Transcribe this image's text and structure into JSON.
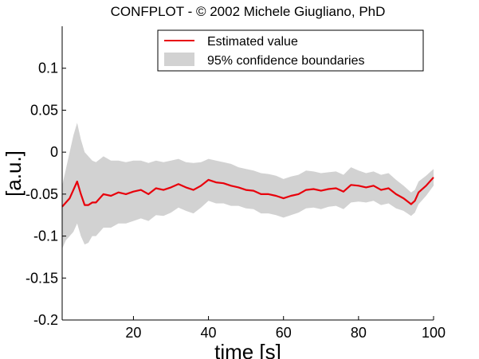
{
  "chart_data": {
    "type": "line",
    "title": "CONFPLOT - © 2002 Michele Giugliano, PhD",
    "xlabel": "time [s]",
    "ylabel": "[a.u.]",
    "xlim": [
      1,
      100
    ],
    "ylim": [
      -0.2,
      0.15
    ],
    "xticks": [
      "20",
      "40",
      "60",
      "80",
      "100"
    ],
    "yticks": [
      "0.1",
      "0.05",
      "0",
      "-0.05",
      "-0.1",
      "-0.15",
      "-0.2"
    ],
    "grid": false,
    "legend_position": "top-right",
    "series": [
      {
        "name": "Estimated value",
        "color": "#e8000b",
        "style": "line",
        "x": [
          1,
          2,
          3,
          4,
          5,
          6,
          7,
          8,
          9,
          10,
          12,
          14,
          16,
          18,
          20,
          22,
          24,
          26,
          28,
          30,
          32,
          34,
          36,
          38,
          40,
          42,
          44,
          46,
          48,
          50,
          52,
          54,
          56,
          58,
          60,
          62,
          64,
          66,
          68,
          70,
          72,
          74,
          76,
          78,
          80,
          82,
          84,
          86,
          88,
          90,
          92,
          94,
          95,
          96,
          98,
          100
        ],
        "y": [
          -0.065,
          -0.06,
          -0.055,
          -0.045,
          -0.035,
          -0.05,
          -0.063,
          -0.063,
          -0.06,
          -0.06,
          -0.05,
          -0.052,
          -0.048,
          -0.05,
          -0.047,
          -0.045,
          -0.05,
          -0.043,
          -0.045,
          -0.042,
          -0.038,
          -0.042,
          -0.045,
          -0.04,
          -0.033,
          -0.036,
          -0.037,
          -0.04,
          -0.042,
          -0.045,
          -0.046,
          -0.05,
          -0.05,
          -0.052,
          -0.055,
          -0.052,
          -0.05,
          -0.045,
          -0.044,
          -0.046,
          -0.044,
          -0.043,
          -0.047,
          -0.039,
          -0.04,
          -0.042,
          -0.04,
          -0.045,
          -0.043,
          -0.05,
          -0.055,
          -0.062,
          -0.058,
          -0.048,
          -0.04,
          -0.03
        ]
      },
      {
        "name": "95% confidence boundaries",
        "color": "#d2d2d2",
        "style": "band",
        "x": [
          1,
          2,
          3,
          4,
          5,
          6,
          7,
          8,
          9,
          10,
          12,
          14,
          16,
          18,
          20,
          22,
          24,
          26,
          28,
          30,
          32,
          34,
          36,
          38,
          40,
          42,
          44,
          46,
          48,
          50,
          52,
          54,
          56,
          58,
          60,
          62,
          64,
          66,
          68,
          70,
          72,
          74,
          76,
          78,
          80,
          82,
          84,
          86,
          88,
          90,
          92,
          94,
          95,
          96,
          98,
          100
        ],
        "upper": [
          -0.04,
          -0.02,
          0.0,
          0.02,
          0.035,
          0.015,
          0.0,
          -0.005,
          -0.01,
          -0.012,
          -0.005,
          -0.01,
          -0.01,
          -0.012,
          -0.01,
          -0.01,
          -0.013,
          -0.01,
          -0.012,
          -0.01,
          -0.008,
          -0.012,
          -0.013,
          -0.012,
          -0.008,
          -0.01,
          -0.012,
          -0.014,
          -0.018,
          -0.02,
          -0.022,
          -0.025,
          -0.026,
          -0.028,
          -0.032,
          -0.029,
          -0.027,
          -0.022,
          -0.023,
          -0.025,
          -0.024,
          -0.023,
          -0.027,
          -0.018,
          -0.022,
          -0.025,
          -0.023,
          -0.027,
          -0.025,
          -0.033,
          -0.04,
          -0.048,
          -0.045,
          -0.035,
          -0.028,
          -0.02
        ],
        "lower": [
          -0.115,
          -0.105,
          -0.1,
          -0.095,
          -0.085,
          -0.1,
          -0.11,
          -0.108,
          -0.1,
          -0.1,
          -0.09,
          -0.09,
          -0.085,
          -0.085,
          -0.082,
          -0.079,
          -0.082,
          -0.075,
          -0.076,
          -0.072,
          -0.066,
          -0.07,
          -0.073,
          -0.066,
          -0.058,
          -0.061,
          -0.061,
          -0.064,
          -0.064,
          -0.067,
          -0.068,
          -0.073,
          -0.073,
          -0.075,
          -0.078,
          -0.075,
          -0.072,
          -0.067,
          -0.066,
          -0.068,
          -0.065,
          -0.064,
          -0.068,
          -0.06,
          -0.059,
          -0.06,
          -0.058,
          -0.063,
          -0.061,
          -0.067,
          -0.07,
          -0.076,
          -0.072,
          -0.062,
          -0.052,
          -0.04
        ]
      }
    ]
  }
}
